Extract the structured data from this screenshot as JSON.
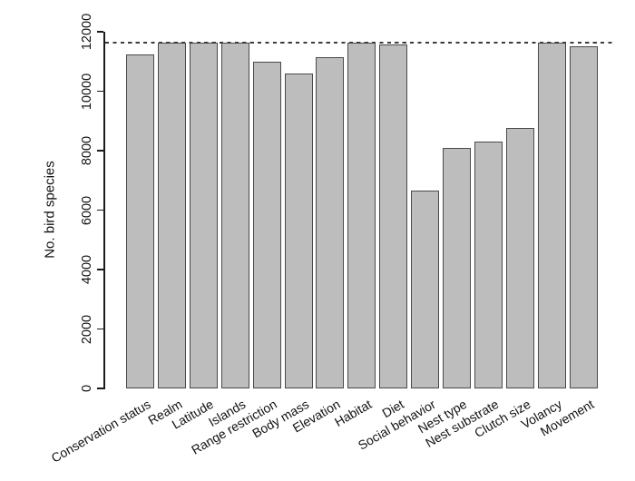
{
  "figure": {
    "background_color": "#ffffff",
    "axis_color": "#1a1a1a",
    "text_color": "#111111"
  },
  "chart_data": {
    "type": "bar",
    "title": "",
    "xlabel": "",
    "ylabel": "No. bird species",
    "ylim": [
      0,
      12000
    ],
    "yticks": [
      0,
      2000,
      4000,
      6000,
      8000,
      10000,
      12000
    ],
    "grid": false,
    "legend": "none",
    "bar_fill_color": "#bdbdbd",
    "bar_border_color": "#4a4a4a",
    "x_tick_label_angle_deg": 30,
    "categories": [
      "Conservation status",
      "Realm",
      "Latitude",
      "Islands",
      "Range restriction",
      "Body mass",
      "Elevation",
      "Habitat",
      "Diet",
      "Social behavior",
      "Nest type",
      "Nest substrate",
      "Clutch size",
      "Volancy",
      "Movement"
    ],
    "values": [
      11240,
      11630,
      11630,
      11630,
      11000,
      10600,
      11150,
      11630,
      11560,
      6670,
      8100,
      8300,
      8760,
      11630,
      11500
    ],
    "reference_line": {
      "value": 11630,
      "style": "dashed",
      "color": "#3d3d3d"
    }
  }
}
